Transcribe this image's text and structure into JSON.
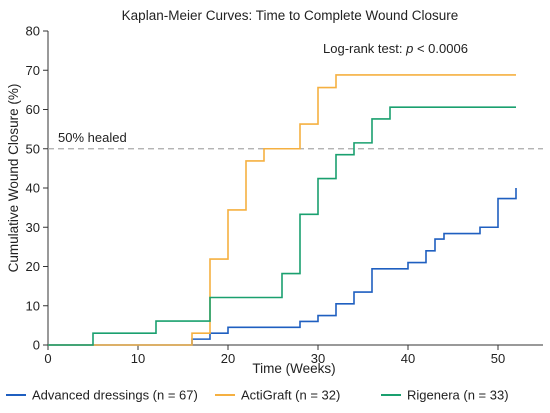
{
  "chart_data": {
    "type": "line",
    "step": true,
    "title": "Kaplan-Meier Curves: Time to Complete Wound Closure",
    "xlabel": "Time (Weeks)",
    "ylabel": "Cumulative Wound Closure (%)",
    "xlim": [
      0,
      55
    ],
    "ylim": [
      0,
      80
    ],
    "xticks": [
      0,
      10,
      20,
      30,
      40,
      50
    ],
    "yticks": [
      0,
      10,
      20,
      30,
      40,
      50,
      60,
      70,
      80
    ],
    "grid": false,
    "legend_position": "bottom",
    "reference_line": {
      "y": 50,
      "label": "50% healed",
      "color": "#aaaaaa"
    },
    "annotation": {
      "prefix": "Log-rank test: ",
      "italic": "p",
      "suffix": " < 0.0006"
    },
    "series": [
      {
        "name": "Advanced dressings (n = 67)",
        "color": "#1f5fc0",
        "x": [
          0,
          16,
          18,
          20,
          28,
          30,
          32,
          34,
          36,
          40,
          42,
          43,
          44,
          48,
          50,
          52
        ],
        "y": [
          0,
          1.5,
          3,
          4.5,
          6,
          7.5,
          10.5,
          13.5,
          19.4,
          21,
          24,
          27,
          28.4,
          30,
          37.3,
          40
        ]
      },
      {
        "name": "ActiGraft (n = 32)",
        "color": "#f5b041",
        "x": [
          0,
          16,
          18,
          20,
          22,
          24,
          25,
          28,
          30,
          32,
          52
        ],
        "y": [
          0,
          3,
          21.9,
          34.4,
          46.9,
          50,
          50,
          56.3,
          65.6,
          68.8,
          68.8
        ]
      },
      {
        "name": "Rigenera (n = 33)",
        "color": "#1aa06f",
        "x": [
          0,
          5,
          12,
          18,
          26,
          28,
          30,
          32,
          34,
          36,
          38,
          52
        ],
        "y": [
          0,
          3,
          6.1,
          12.1,
          18.2,
          33.3,
          42.4,
          48.5,
          51.5,
          57.6,
          60.6,
          60.6
        ]
      }
    ]
  }
}
